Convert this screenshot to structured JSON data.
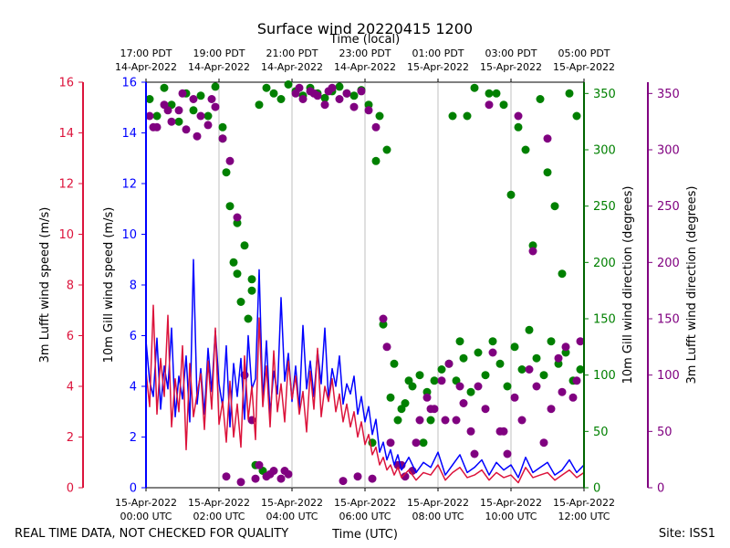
{
  "chart_data": {
    "type": "line",
    "title": "Surface wind 20220415 1200",
    "top_axis_label": "Time (local)",
    "xlabel": "Time (UTC)",
    "footer_left": "REAL TIME DATA, NOT CHECKED FOR QUALITY",
    "footer_right": "Site: ISS1",
    "x_range_hours": [
      0,
      12
    ],
    "bottom_ticks": [
      {
        "hour": 0,
        "line1": "15-Apr-2022",
        "line2": "00:00 UTC"
      },
      {
        "hour": 2,
        "line1": "15-Apr-2022",
        "line2": "02:00 UTC"
      },
      {
        "hour": 4,
        "line1": "15-Apr-2022",
        "line2": "04:00 UTC"
      },
      {
        "hour": 6,
        "line1": "15-Apr-2022",
        "line2": "06:00 UTC"
      },
      {
        "hour": 8,
        "line1": "15-Apr-2022",
        "line2": "08:00 UTC"
      },
      {
        "hour": 10,
        "line1": "15-Apr-2022",
        "line2": "10:00 UTC"
      },
      {
        "hour": 12,
        "line1": "15-Apr-2022",
        "line2": "12:00 UTC"
      }
    ],
    "top_ticks": [
      {
        "hour": 0,
        "line1": "17:00 PDT",
        "line2": "14-Apr-2022"
      },
      {
        "hour": 2,
        "line1": "19:00 PDT",
        "line2": "14-Apr-2022"
      },
      {
        "hour": 4,
        "line1": "21:00 PDT",
        "line2": "14-Apr-2022"
      },
      {
        "hour": 6,
        "line1": "23:00 PDT",
        "line2": "14-Apr-2022"
      },
      {
        "hour": 8,
        "line1": "01:00 PDT",
        "line2": "15-Apr-2022"
      },
      {
        "hour": 10,
        "line1": "03:00 PDT",
        "line2": "15-Apr-2022"
      },
      {
        "hour": 12,
        "line1": "05:00 PDT",
        "line2": "15-Apr-2022"
      }
    ],
    "speed_ylim": [
      0,
      16
    ],
    "speed_ticks": [
      0,
      2,
      4,
      6,
      8,
      10,
      12,
      14,
      16
    ],
    "direction_ylim": [
      0,
      360
    ],
    "direction_ticks": [
      0,
      50,
      100,
      150,
      200,
      250,
      300,
      350
    ],
    "axes": {
      "gill_speed": {
        "label": "10m Gill wind speed (m/s)",
        "color": "#0000ff"
      },
      "lufft_speed": {
        "label": "3m Lufft wind speed (m/s)",
        "color": "#dc143c"
      },
      "gill_dir": {
        "label": "10m Gill wind direction (degrees)",
        "color": "#008000"
      },
      "lufft_dir": {
        "label": "3m Lufft wind direction (degrees)",
        "color": "#800080"
      }
    },
    "series": [
      {
        "name": "10m Gill wind speed (m/s)",
        "kind": "line",
        "axis": "speed",
        "color": "#0000ff",
        "x": [
          0.0,
          0.1,
          0.2,
          0.3,
          0.4,
          0.5,
          0.6,
          0.7,
          0.8,
          0.9,
          1.0,
          1.1,
          1.2,
          1.3,
          1.4,
          1.5,
          1.6,
          1.7,
          1.8,
          1.9,
          2.0,
          2.1,
          2.2,
          2.3,
          2.4,
          2.5,
          2.6,
          2.7,
          2.8,
          2.9,
          3.0,
          3.1,
          3.2,
          3.3,
          3.4,
          3.5,
          3.6,
          3.7,
          3.8,
          3.9,
          4.0,
          4.1,
          4.2,
          4.3,
          4.4,
          4.5,
          4.6,
          4.7,
          4.8,
          4.9,
          5.0,
          5.1,
          5.2,
          5.3,
          5.4,
          5.5,
          5.6,
          5.7,
          5.8,
          5.9,
          6.0,
          6.1,
          6.2,
          6.3,
          6.4,
          6.5,
          6.6,
          6.7,
          6.8,
          6.9,
          7.0,
          7.2,
          7.4,
          7.6,
          7.8,
          8.0,
          8.2,
          8.4,
          8.6,
          8.8,
          9.0,
          9.2,
          9.4,
          9.6,
          9.8,
          10.0,
          10.2,
          10.4,
          10.6,
          10.8,
          11.0,
          11.2,
          11.4,
          11.6,
          11.8,
          12.0
        ],
        "values": [
          5.8,
          4.2,
          3.6,
          5.9,
          3.1,
          4.8,
          3.9,
          6.3,
          2.8,
          4.4,
          3.5,
          5.2,
          2.6,
          9.0,
          3.3,
          4.7,
          2.9,
          5.5,
          3.8,
          6.2,
          4.1,
          3.2,
          5.6,
          2.4,
          4.9,
          3.6,
          5.1,
          2.7,
          6.0,
          3.9,
          4.3,
          8.6,
          3.4,
          5.8,
          2.9,
          4.6,
          3.7,
          7.5,
          4.2,
          5.3,
          3.4,
          4.8,
          3.1,
          6.4,
          3.9,
          5.0,
          3.6,
          5.4,
          4.1,
          6.3,
          3.5,
          4.7,
          4.0,
          5.2,
          3.3,
          4.1,
          3.7,
          4.4,
          2.9,
          3.6,
          2.6,
          3.2,
          2.1,
          2.7,
          1.4,
          1.8,
          1.1,
          1.5,
          0.9,
          1.3,
          0.7,
          1.2,
          0.6,
          1.0,
          0.8,
          1.4,
          0.5,
          0.9,
          1.3,
          0.6,
          0.8,
          1.1,
          0.5,
          1.0,
          0.7,
          0.9,
          0.4,
          1.2,
          0.6,
          0.8,
          1.0,
          0.5,
          0.7,
          1.1,
          0.6,
          0.9
        ]
      },
      {
        "name": "3m Lufft wind speed (m/s)",
        "kind": "line",
        "axis": "speed",
        "color": "#dc143c",
        "x": [
          0.0,
          0.1,
          0.2,
          0.3,
          0.4,
          0.5,
          0.6,
          0.7,
          0.8,
          0.9,
          1.0,
          1.1,
          1.2,
          1.3,
          1.4,
          1.5,
          1.6,
          1.7,
          1.8,
          1.9,
          2.0,
          2.1,
          2.2,
          2.3,
          2.4,
          2.5,
          2.6,
          2.7,
          2.8,
          2.9,
          3.0,
          3.1,
          3.2,
          3.3,
          3.4,
          3.5,
          3.6,
          3.7,
          3.8,
          3.9,
          4.0,
          4.1,
          4.2,
          4.3,
          4.4,
          4.5,
          4.6,
          4.7,
          4.8,
          4.9,
          5.0,
          5.1,
          5.2,
          5.3,
          5.4,
          5.5,
          5.6,
          5.7,
          5.8,
          5.9,
          6.0,
          6.1,
          6.2,
          6.3,
          6.4,
          6.5,
          6.6,
          6.7,
          6.8,
          6.9,
          7.0,
          7.2,
          7.4,
          7.6,
          7.8,
          8.0,
          8.2,
          8.4,
          8.6,
          8.8,
          9.0,
          9.2,
          9.4,
          9.6,
          9.8,
          10.0,
          10.2,
          10.4,
          10.6,
          10.8,
          11.0,
          11.2,
          11.4,
          11.6,
          11.8,
          12.0
        ],
        "values": [
          4.6,
          3.2,
          7.2,
          2.9,
          5.1,
          3.6,
          6.8,
          2.4,
          4.3,
          3.0,
          5.6,
          1.5,
          4.9,
          2.8,
          3.7,
          4.5,
          2.3,
          5.0,
          3.1,
          6.3,
          2.5,
          3.4,
          1.8,
          4.2,
          2.0,
          3.3,
          1.6,
          5.2,
          2.7,
          4.0,
          1.9,
          6.7,
          3.2,
          4.8,
          2.4,
          5.4,
          3.0,
          4.1,
          2.6,
          5.0,
          3.5,
          4.4,
          2.9,
          3.8,
          2.2,
          4.6,
          3.1,
          5.5,
          2.8,
          4.0,
          3.4,
          4.3,
          3.0,
          3.7,
          2.6,
          3.3,
          2.4,
          3.0,
          2.0,
          2.6,
          1.7,
          2.1,
          1.3,
          1.6,
          0.9,
          1.2,
          0.7,
          0.9,
          0.5,
          0.8,
          0.4,
          0.7,
          0.3,
          0.6,
          0.5,
          0.9,
          0.3,
          0.6,
          0.8,
          0.4,
          0.5,
          0.7,
          0.3,
          0.6,
          0.4,
          0.5,
          0.2,
          0.8,
          0.4,
          0.5,
          0.6,
          0.3,
          0.5,
          0.7,
          0.4,
          0.6
        ]
      },
      {
        "name": "10m Gill wind direction (degrees)",
        "kind": "scatter",
        "axis": "direction",
        "color": "#008000",
        "x": [
          0.1,
          0.3,
          0.5,
          0.7,
          0.9,
          1.1,
          1.3,
          1.5,
          1.7,
          1.9,
          2.1,
          2.3,
          2.5,
          2.7,
          2.9,
          3.1,
          3.3,
          3.5,
          3.7,
          3.9,
          4.1,
          4.3,
          4.5,
          4.7,
          4.9,
          5.1,
          5.3,
          5.5,
          5.7,
          5.9,
          6.1,
          6.3,
          6.5,
          6.7,
          6.9,
          7.1,
          7.3,
          7.5,
          7.7,
          7.9,
          8.1,
          8.3,
          8.5,
          8.7,
          8.9,
          9.1,
          9.3,
          9.5,
          9.7,
          9.9,
          10.1,
          10.3,
          10.5,
          10.7,
          10.9,
          11.1,
          11.3,
          11.5,
          11.7,
          11.9,
          2.2,
          2.4,
          2.6,
          2.8,
          3.0,
          3.2,
          6.4,
          6.6,
          6.8,
          7.0,
          7.6,
          7.8,
          8.4,
          8.6,
          9.0,
          9.4,
          9.8,
          10.0,
          10.2,
          10.4,
          10.8,
          11.0,
          11.2,
          11.4,
          11.6,
          11.8,
          2.1,
          2.5,
          2.9,
          6.2,
          7.2,
          8.8,
          9.6,
          10.6
        ],
        "values": [
          345,
          330,
          355,
          340,
          325,
          350,
          335,
          348,
          330,
          356,
          320,
          250,
          235,
          215,
          185,
          340,
          355,
          350,
          345,
          358,
          352,
          348,
          355,
          350,
          346,
          352,
          356,
          350,
          348,
          353,
          340,
          290,
          145,
          80,
          60,
          75,
          90,
          100,
          85,
          95,
          105,
          110,
          95,
          115,
          85,
          120,
          100,
          130,
          110,
          90,
          125,
          105,
          140,
          115,
          100,
          130,
          110,
          120,
          95,
          105,
          280,
          200,
          165,
          150,
          20,
          15,
          330,
          300,
          110,
          70,
          40,
          60,
          330,
          130,
          355,
          350,
          340,
          260,
          320,
          300,
          345,
          280,
          250,
          190,
          350,
          330,
          310,
          190,
          175,
          40,
          95,
          330,
          350,
          215
        ]
      },
      {
        "name": "3m Lufft wind direction (degrees)",
        "kind": "scatter",
        "axis": "direction",
        "color": "#800080",
        "x": [
          0.1,
          0.3,
          0.5,
          0.7,
          0.9,
          1.1,
          1.3,
          1.5,
          1.7,
          1.9,
          2.1,
          2.3,
          2.5,
          2.7,
          2.9,
          3.1,
          3.3,
          3.5,
          3.7,
          3.9,
          4.1,
          4.3,
          4.5,
          4.7,
          4.9,
          5.1,
          5.3,
          5.5,
          5.7,
          5.9,
          6.1,
          6.3,
          6.5,
          6.7,
          6.9,
          7.1,
          7.3,
          7.5,
          7.7,
          7.9,
          8.1,
          8.3,
          8.5,
          8.7,
          8.9,
          9.1,
          9.3,
          9.5,
          9.7,
          9.9,
          10.1,
          10.3,
          10.5,
          10.7,
          10.9,
          11.1,
          11.3,
          11.5,
          11.7,
          11.9,
          0.2,
          0.6,
          1.0,
          1.4,
          1.8,
          2.2,
          2.6,
          3.0,
          3.4,
          3.8,
          4.2,
          4.6,
          5.0,
          5.4,
          5.8,
          6.2,
          6.6,
          7.0,
          7.4,
          7.8,
          8.2,
          8.6,
          9.0,
          9.4,
          9.8,
          10.2,
          10.6,
          11.0,
          11.4,
          11.8
        ],
        "values": [
          330,
          320,
          340,
          325,
          335,
          318,
          345,
          330,
          322,
          338,
          310,
          290,
          240,
          100,
          60,
          20,
          10,
          15,
          8,
          12,
          350,
          345,
          352,
          348,
          340,
          355,
          345,
          350,
          338,
          352,
          335,
          320,
          150,
          40,
          20,
          10,
          15,
          60,
          80,
          70,
          95,
          110,
          60,
          75,
          50,
          90,
          70,
          120,
          50,
          30,
          80,
          60,
          105,
          90,
          40,
          70,
          115,
          125,
          80,
          130,
          320,
          335,
          350,
          312,
          345,
          10,
          5,
          8,
          12,
          15,
          355,
          350,
          352,
          6,
          10,
          8,
          125,
          20,
          40,
          70,
          60,
          90,
          30,
          340,
          50,
          330,
          210,
          310,
          85,
          95
        ]
      }
    ]
  }
}
